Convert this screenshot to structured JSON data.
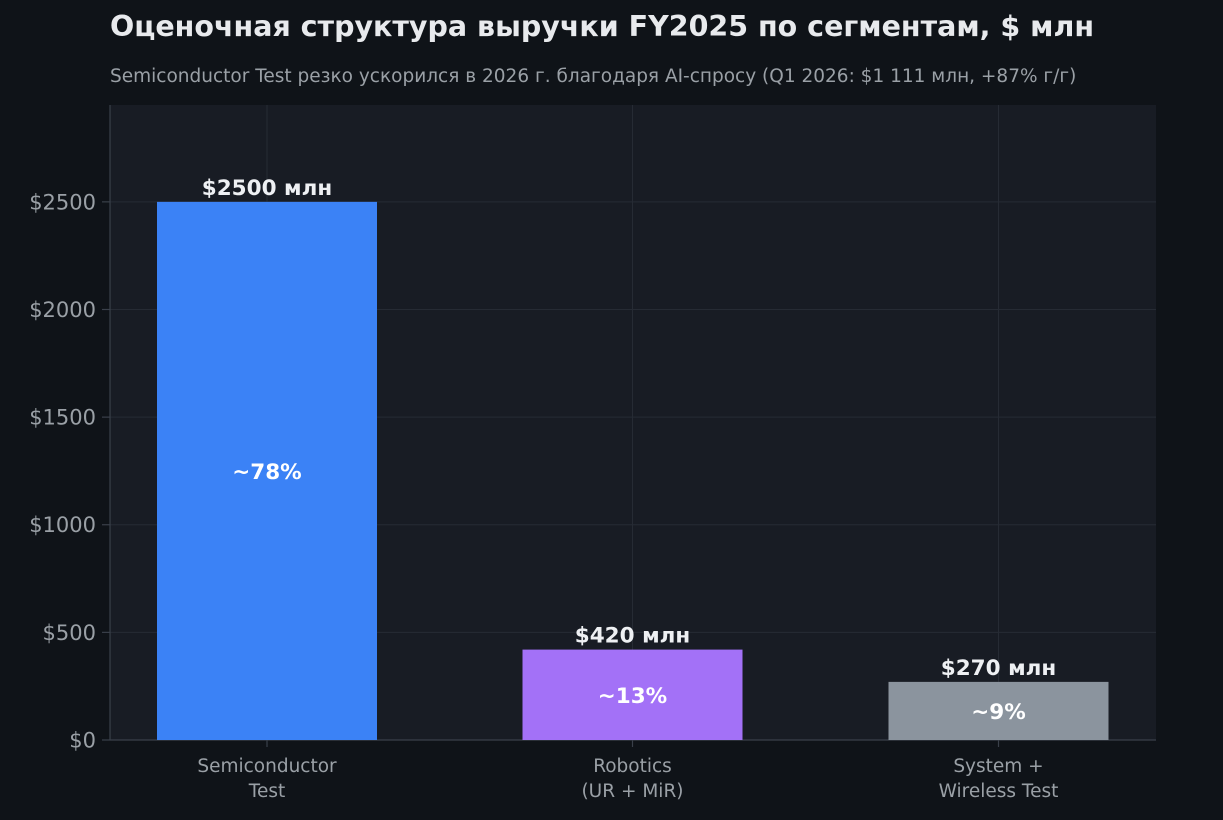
{
  "chart_data": {
    "type": "bar",
    "title": "Оценочная структура выручки FY2025 по сегментам, $ млн",
    "subtitle": "Semiconductor Test резко ускорился в 2026 г. благодаря AI-спросу (Q1 2026: $1 111 млн, +87% г/г)",
    "categories": [
      [
        "Semiconductor",
        "Test"
      ],
      [
        "Robotics",
        "(UR + MiR)"
      ],
      [
        "System +",
        "Wireless Test"
      ]
    ],
    "values": [
      2500,
      420,
      270
    ],
    "value_labels": [
      "$2500 млн",
      "$420 млн",
      "$270 млн"
    ],
    "share_labels": [
      "~78%",
      "~13%",
      "~9%"
    ],
    "colors": [
      "#3b82f6",
      "#a371f7",
      "#8b949e"
    ],
    "yticks": [
      0,
      500,
      1000,
      1500,
      2000,
      2500
    ],
    "ytick_labels": [
      "$0",
      "$500",
      "$1000",
      "$1500",
      "$2000",
      "$2500"
    ],
    "ylim": [
      0,
      2950
    ],
    "grid": true,
    "xlabel": "",
    "ylabel": ""
  }
}
